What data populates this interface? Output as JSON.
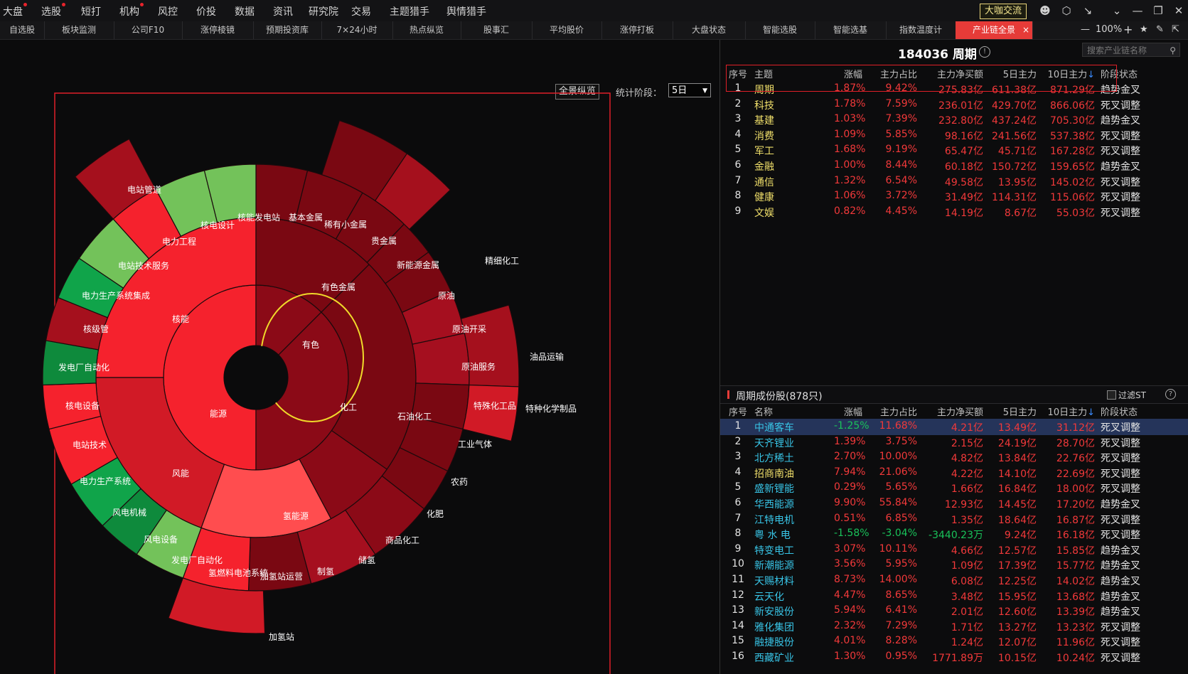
{
  "menu": {
    "items": [
      {
        "label": "大盘",
        "dot": true
      },
      {
        "label": "选股",
        "dot": true
      },
      {
        "label": "短打",
        "dot": false
      },
      {
        "label": "机构",
        "dot": true
      },
      {
        "label": "风控",
        "dot": false
      },
      {
        "label": "价投",
        "dot": false
      },
      {
        "label": "数据",
        "dot": false
      },
      {
        "label": "资讯",
        "dot": false
      },
      {
        "label": "研究院",
        "dot": false
      },
      {
        "label": "交易",
        "dot": false
      },
      {
        "label": "主题猎手",
        "dot": false
      },
      {
        "label": "舆情猎手",
        "dot": false
      }
    ],
    "dakaxiu_label": "大咖交流",
    "icons": [
      "user-icon",
      "settings-hex-icon",
      "collapse-icon",
      "chevron-down-icon",
      "minimize-icon",
      "restore-icon",
      "close-icon"
    ]
  },
  "tabs": {
    "items": [
      "自选股",
      "板块监测",
      "公司F10",
      "涨停棱镜",
      "预期投资库",
      "7×24小时",
      "热点纵览",
      "股事汇",
      "平均股价",
      "涨停打板",
      "大盘状态",
      "智能选股",
      "智能选基",
      "指数温度计",
      "产业链全景"
    ],
    "active_index": 14,
    "zoom": "100%"
  },
  "left": {
    "overview_button": "全景纵览",
    "stat_label": "统计阶段：",
    "stat_value": "5日"
  },
  "sunburst": {
    "inner": [
      {
        "label": "能源",
        "color": "#f5222d"
      },
      {
        "label": "有色",
        "color": "#8b0a17"
      },
      {
        "label": "化工",
        "color": "#8b0a17"
      }
    ],
    "middle": [
      {
        "label": "核能",
        "color": "#f5222d"
      },
      {
        "label": "风能",
        "color": "#d11a26"
      },
      {
        "label": "氢能源",
        "color": "#ff4d4f"
      },
      {
        "label": "商品化工",
        "color": "#8b0a17"
      },
      {
        "label": "化肥",
        "color": "#7a0812"
      },
      {
        "label": "农药",
        "color": "#7a0812"
      },
      {
        "label": "工业气体",
        "color": "#7a0812"
      },
      {
        "label": "特殊化工品",
        "color": "#a50f1f"
      },
      {
        "label": "原油服务",
        "color": "#a50f1f"
      },
      {
        "label": "原油开采",
        "color": "#7a0812"
      },
      {
        "label": "原油",
        "color": "#7a0812"
      },
      {
        "label": "石油化工",
        "color": "#7a0812"
      },
      {
        "label": "新能源金属",
        "color": "#7a0812"
      },
      {
        "label": "贵金属",
        "color": "#7a0812"
      },
      {
        "label": "稀有小金属",
        "color": "#7a0812"
      },
      {
        "label": "基本金属",
        "color": "#7a0812"
      },
      {
        "label": "有色金属",
        "color": "#7a0812"
      }
    ],
    "outer": [
      {
        "label": "电站管道",
        "color": "#a5101d"
      },
      {
        "label": "电力工程",
        "color": "#f5222d"
      },
      {
        "label": "核电设计",
        "color": "#73c25a"
      },
      {
        "label": "核能发电站",
        "color": "#73c25a"
      },
      {
        "label": "电站技术服务",
        "color": "#73c25a"
      },
      {
        "label": "电力生产系统集成",
        "color": "#10a44a"
      },
      {
        "label": "核级管",
        "color": "#a5101d"
      },
      {
        "label": "发电厂自动化",
        "color": "#0e8a3c"
      },
      {
        "label": "核电设备",
        "color": "#f5222d"
      },
      {
        "label": "电站技术",
        "color": "#f5222d"
      },
      {
        "label": "电力生产系统",
        "color": "#10a44a"
      },
      {
        "label": "风电机械",
        "color": "#0e8a3c"
      },
      {
        "label": "风电设备",
        "color": "#73c25a"
      },
      {
        "label": "发电厂自动化",
        "color": "#0e8a3c"
      },
      {
        "label": "氢燃料电池系统",
        "color": "#f5222d"
      },
      {
        "label": "加氢站运营",
        "color": "#f5222d"
      },
      {
        "label": "制氢",
        "color": "#7a0812"
      },
      {
        "label": "储氢",
        "color": "#a5101d"
      },
      {
        "label": "加氢站",
        "color": "#d11a26"
      },
      {
        "label": "精细化工",
        "color": "#d11a26"
      },
      {
        "label": "油品运输",
        "color": "#a5101d"
      },
      {
        "label": "特种化学制品",
        "color": "#d11a26"
      }
    ]
  },
  "chain": {
    "code_title": "184036 周期",
    "search_placeholder": "搜索产业链名称",
    "headers": [
      "序号",
      "主题",
      "涨幅",
      "主力占比",
      "主力净买额",
      "5日主力",
      "10日主力",
      "阶段状态"
    ],
    "rows": [
      [
        "1",
        "周期",
        "1.87%",
        "9.42%",
        "275.83亿",
        "611.38亿",
        "871.29亿",
        "趋势金叉"
      ],
      [
        "2",
        "科技",
        "1.78%",
        "7.59%",
        "236.01亿",
        "429.70亿",
        "866.06亿",
        "死叉调整"
      ],
      [
        "3",
        "基建",
        "1.03%",
        "7.39%",
        "232.80亿",
        "437.24亿",
        "705.30亿",
        "趋势金叉"
      ],
      [
        "4",
        "消费",
        "1.09%",
        "5.85%",
        "98.16亿",
        "241.56亿",
        "537.38亿",
        "死叉调整"
      ],
      [
        "5",
        "军工",
        "1.68%",
        "9.19%",
        "65.47亿",
        "45.71亿",
        "167.28亿",
        "死叉调整"
      ],
      [
        "6",
        "金融",
        "1.00%",
        "8.44%",
        "60.18亿",
        "150.72亿",
        "159.65亿",
        "趋势金叉"
      ],
      [
        "7",
        "通信",
        "1.32%",
        "6.54%",
        "49.58亿",
        "13.95亿",
        "145.02亿",
        "死叉调整"
      ],
      [
        "8",
        "健康",
        "1.06%",
        "3.72%",
        "31.49亿",
        "114.31亿",
        "115.06亿",
        "死叉调整"
      ],
      [
        "9",
        "文娱",
        "0.82%",
        "4.45%",
        "14.19亿",
        "8.67亿",
        "55.03亿",
        "死叉调整"
      ]
    ]
  },
  "stocks": {
    "title": "周期成份股(878只)",
    "filter_label": "过滤ST",
    "headers": [
      "序号",
      "名称",
      "涨幅",
      "主力占比",
      "主力净买额",
      "5日主力",
      "10日主力",
      "阶段状态"
    ],
    "rows": [
      [
        "1",
        "中通客车",
        "-1.25%",
        "11.68%",
        "4.21亿",
        "13.49亿",
        "31.12亿",
        "死叉调整"
      ],
      [
        "2",
        "天齐锂业",
        "1.39%",
        "3.75%",
        "2.15亿",
        "24.19亿",
        "28.70亿",
        "死叉调整"
      ],
      [
        "3",
        "北方稀土",
        "2.70%",
        "10.00%",
        "4.82亿",
        "13.84亿",
        "22.76亿",
        "死叉调整"
      ],
      [
        "4",
        "招商南油",
        "7.94%",
        "21.06%",
        "4.22亿",
        "14.10亿",
        "22.69亿",
        "死叉调整"
      ],
      [
        "5",
        "盛新锂能",
        "0.29%",
        "5.65%",
        "1.66亿",
        "16.84亿",
        "18.00亿",
        "死叉调整"
      ],
      [
        "6",
        "华西能源",
        "9.90%",
        "55.84%",
        "12.93亿",
        "14.45亿",
        "17.20亿",
        "趋势金叉"
      ],
      [
        "7",
        "江特电机",
        "0.51%",
        "6.85%",
        "1.35亿",
        "18.64亿",
        "16.87亿",
        "死叉调整"
      ],
      [
        "8",
        "粤 水 电",
        "-1.58%",
        "-3.04%",
        "-3440.23万",
        "9.24亿",
        "16.18亿",
        "死叉调整"
      ],
      [
        "9",
        "特变电工",
        "3.07%",
        "10.11%",
        "4.66亿",
        "12.57亿",
        "15.85亿",
        "趋势金叉"
      ],
      [
        "10",
        "新潮能源",
        "3.56%",
        "5.95%",
        "1.09亿",
        "17.39亿",
        "15.77亿",
        "趋势金叉"
      ],
      [
        "11",
        "天赐材料",
        "8.73%",
        "14.00%",
        "6.08亿",
        "12.25亿",
        "14.02亿",
        "趋势金叉"
      ],
      [
        "12",
        "云天化",
        "4.47%",
        "8.65%",
        "3.48亿",
        "15.95亿",
        "13.68亿",
        "趋势金叉"
      ],
      [
        "13",
        "新安股份",
        "5.94%",
        "6.41%",
        "2.01亿",
        "12.60亿",
        "13.39亿",
        "趋势金叉"
      ],
      [
        "14",
        "雅化集团",
        "2.32%",
        "7.29%",
        "1.71亿",
        "13.27亿",
        "13.23亿",
        "死叉调整"
      ],
      [
        "15",
        "融捷股份",
        "4.01%",
        "8.28%",
        "1.24亿",
        "12.07亿",
        "11.96亿",
        "死叉调整"
      ],
      [
        "16",
        "西藏矿业",
        "1.30%",
        "0.95%",
        "1771.89万",
        "10.15亿",
        "10.24亿",
        "死叉调整"
      ]
    ]
  }
}
